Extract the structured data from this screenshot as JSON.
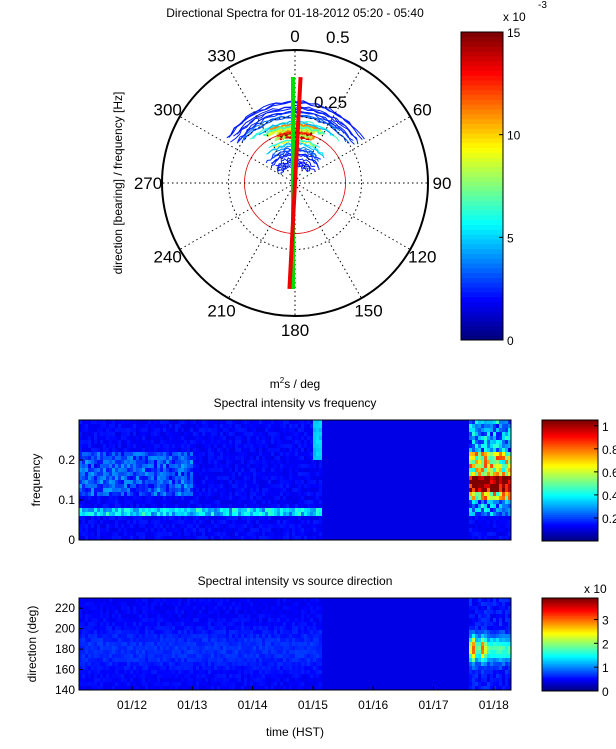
{
  "chart_data": [
    {
      "type": "polar-contour",
      "title": "Directional Spectra for 01-18-2012 05:20 - 05:40",
      "ylabel": "direction [bearing] / frequency [Hz]",
      "angle_ticks": [
        "0",
        "30",
        "60",
        "90",
        "120",
        "150",
        "180",
        "210",
        "240",
        "270",
        "300",
        "330"
      ],
      "radial_ticks": [
        "0.25",
        "0.5"
      ],
      "radial_range": [
        0,
        0.5
      ],
      "peak_frequency": 0.19,
      "peak_direction": 0,
      "mean_direction_lines": [
        {
          "color": "#00dd00",
          "direction": 0
        },
        {
          "color": "#ee0000",
          "direction": 3
        }
      ],
      "colorbar": {
        "min": 0,
        "max": 15,
        "ticks": [
          "0",
          "5",
          "10",
          "15"
        ],
        "multiplier": "x 10",
        "exponent": "-3"
      },
      "colormap": "jet"
    },
    {
      "type": "heatmap",
      "unit_label": "m",
      "unit_sup": "2",
      "unit_rest": "s / deg",
      "title": "Spectral intensity vs frequency",
      "ylabel": "frequency",
      "ylim": [
        0,
        0.3
      ],
      "yticks": [
        "0",
        "0.1",
        "0.2"
      ],
      "xlim": [
        "01/11 03:00",
        "01/18 06:40"
      ],
      "colorbar": {
        "min": 0,
        "max": 1.05,
        "ticks": [
          "0.2",
          "0.4",
          "0.6",
          "0.8",
          "1"
        ]
      },
      "colormap": "jet"
    },
    {
      "type": "heatmap",
      "title": "Spectral intensity vs source direction",
      "ylabel": "direction (deg)",
      "xlabel": "time (HST)",
      "ylim": [
        140,
        230
      ],
      "yticks": [
        "140",
        "160",
        "180",
        "200",
        "220"
      ],
      "xticks": [
        "01/12",
        "01/13",
        "01/14",
        "01/15",
        "01/16",
        "01/17",
        "01/18"
      ],
      "colorbar": {
        "min": 0,
        "max": 3.9,
        "ticks": [
          "0",
          "1",
          "2",
          "3"
        ],
        "multiplier": "x 10"
      },
      "colormap": "jet"
    }
  ]
}
